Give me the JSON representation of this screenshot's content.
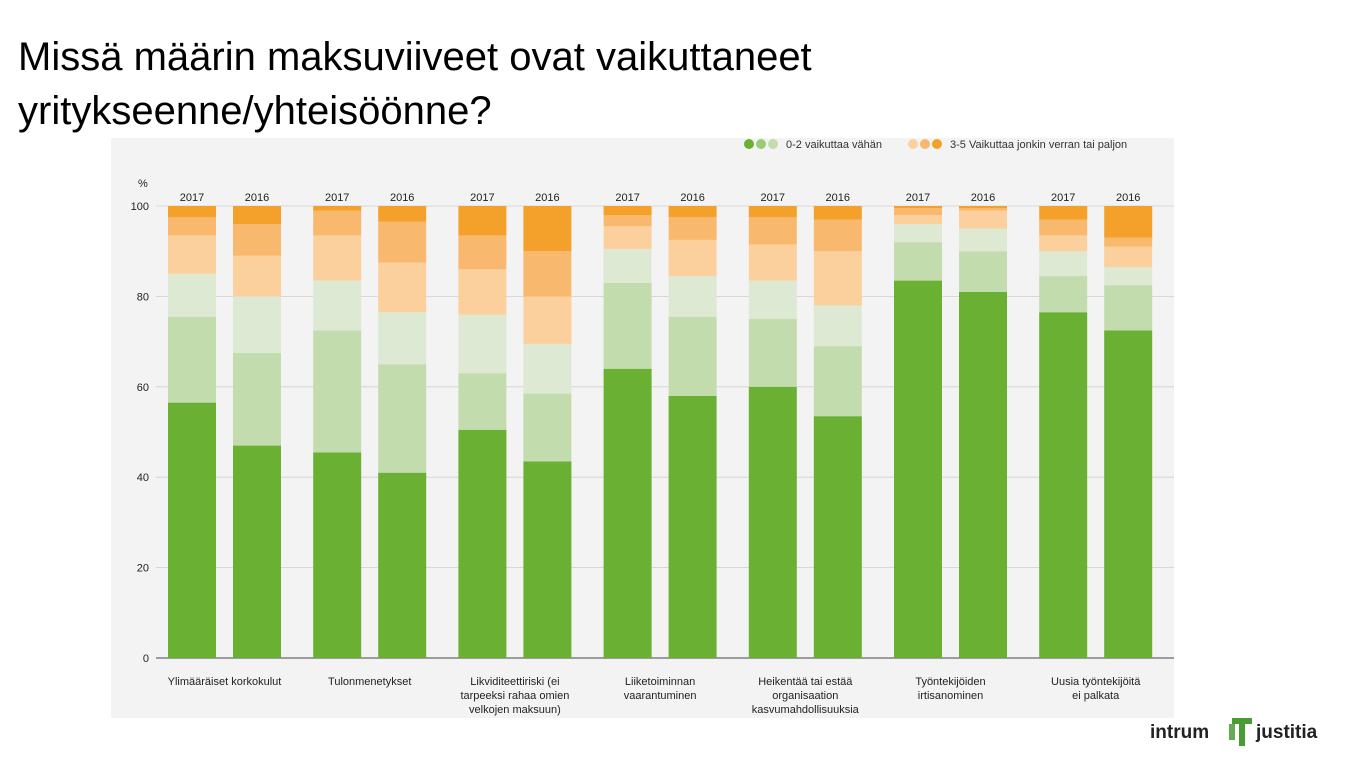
{
  "title": "Missä määrin maksuviiveet ovat vaikuttaneet yritykseenne/yhteisöönne?",
  "logo": {
    "left_word": "intrum",
    "right_word": "justitia"
  },
  "colors": {
    "green_dark": "#69b033",
    "green_mid": "#c2dcae",
    "green_light": "#dde9d3",
    "orange_light": "#fcd09d",
    "orange_mid": "#f8b86e",
    "orange_dark": "#f4a12c",
    "grid": "#d0d0d0",
    "axis": "#444444",
    "logo_green": "#4b9b35"
  },
  "chart_data": {
    "type": "bar",
    "stacked": true,
    "ylabel": "%",
    "ylim": [
      0,
      100
    ],
    "yticks": [
      0,
      20,
      40,
      60,
      80,
      100
    ],
    "grid": true,
    "legend": {
      "placement": "top-right",
      "items": [
        {
          "label": "0-2 vaikuttaa vähän",
          "colors": [
            "#69b033",
            "#9ccb78",
            "#c2dcae"
          ]
        },
        {
          "label": "3-5 Vaikuttaa jonkin verran tai paljon",
          "colors": [
            "#fcd09d",
            "#f8b86e",
            "#f4a12c"
          ]
        }
      ]
    },
    "segment_order": [
      "0",
      "1",
      "2",
      "3",
      "4",
      "5"
    ],
    "groups": [
      {
        "label": [
          "Ylimääräiset korkokulut"
        ],
        "bars": [
          {
            "year": "2017",
            "values": [
              56.5,
              19,
              9.5,
              8.5,
              4,
              2.5
            ]
          },
          {
            "year": "2016",
            "values": [
              47,
              20.5,
              12.5,
              9,
              7,
              4
            ]
          }
        ]
      },
      {
        "label": [
          "Tulonmenetykset"
        ],
        "bars": [
          {
            "year": "2017",
            "values": [
              45.5,
              27,
              11,
              10,
              5.5,
              1
            ]
          },
          {
            "year": "2016",
            "values": [
              41,
              24,
              11.5,
              11,
              9,
              3.5
            ]
          }
        ]
      },
      {
        "label": [
          "Likviditeettiriski (ei",
          "tarpeeksi rahaa omien",
          "velkojen maksuun)"
        ],
        "bars": [
          {
            "year": "2017",
            "values": [
              50.5,
              12.5,
              13,
              10,
              7.5,
              6.5
            ]
          },
          {
            "year": "2016",
            "values": [
              43.5,
              15,
              11,
              10.5,
              10,
              10
            ]
          }
        ]
      },
      {
        "label": [
          "Liiketoiminnan",
          "vaarantuminen"
        ],
        "bars": [
          {
            "year": "2017",
            "values": [
              64,
              19,
              7.5,
              5,
              2.5,
              2
            ]
          },
          {
            "year": "2016",
            "values": [
              58,
              17.5,
              9,
              8,
              5,
              2.5
            ]
          }
        ]
      },
      {
        "label": [
          "Heikentää tai estää",
          "organisaation",
          "kasvumahdollisuuksia"
        ],
        "bars": [
          {
            "year": "2017",
            "values": [
              60,
              15,
              8.5,
              8,
              6,
              2.5
            ]
          },
          {
            "year": "2016",
            "values": [
              53.5,
              15.5,
              9,
              12,
              7,
              3
            ]
          }
        ]
      },
      {
        "label": [
          "Työntekijöiden",
          "irtisanominen"
        ],
        "bars": [
          {
            "year": "2017",
            "values": [
              83.5,
              8.5,
              4,
              2,
              1.5,
              0.5
            ]
          },
          {
            "year": "2016",
            "values": [
              81,
              9,
              5,
              4,
              0.5,
              0.5
            ]
          }
        ]
      },
      {
        "label": [
          "Uusia työntekijöitä",
          "ei palkata"
        ],
        "bars": [
          {
            "year": "2017",
            "values": [
              76.5,
              8,
              5.5,
              3.5,
              3.5,
              3
            ]
          },
          {
            "year": "2016",
            "values": [
              72.5,
              10,
              4,
              4.5,
              2,
              7
            ]
          }
        ]
      }
    ]
  }
}
